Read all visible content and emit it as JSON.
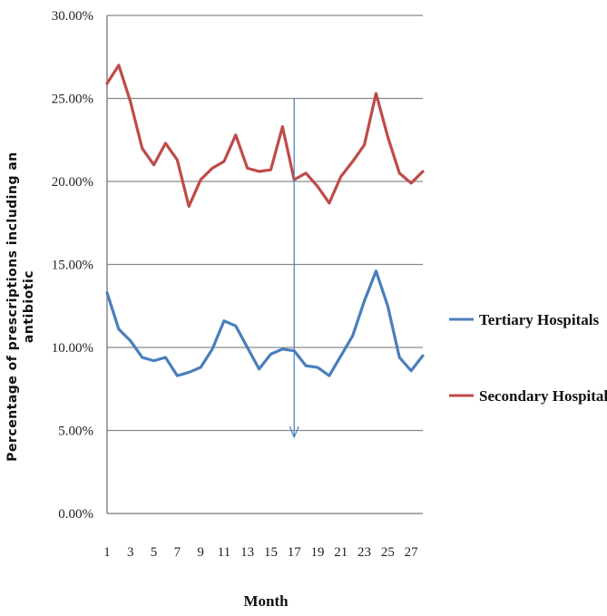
{
  "chart_data": {
    "type": "line",
    "title": "",
    "xlabel": "Month",
    "ylabel_line1": "Percentage of prescriptions including an",
    "ylabel_line2": "antibiotic",
    "ylim": [
      0,
      30
    ],
    "y_ticks": [
      0,
      5,
      10,
      15,
      20,
      25,
      30
    ],
    "y_tick_labels": [
      "0.00%",
      "5.00%",
      "10.00%",
      "15.00%",
      "20.00%",
      "25.00%",
      "30.00%"
    ],
    "x": [
      1,
      2,
      3,
      4,
      5,
      6,
      7,
      8,
      9,
      10,
      11,
      12,
      13,
      14,
      15,
      16,
      17,
      18,
      19,
      20,
      21,
      22,
      23,
      24,
      25,
      26,
      27,
      28
    ],
    "x_tick_labels": [
      "1",
      "3",
      "5",
      "7",
      "9",
      "11",
      "13",
      "15",
      "17",
      "19",
      "21",
      "23",
      "25",
      "27"
    ],
    "grid": "horizontal",
    "legend_position": "right",
    "annotation": "vertical arrow at month 17",
    "series": [
      {
        "name": "Tertiary Hospitals",
        "color": "#4a7ebb",
        "values": [
          13.3,
          11.1,
          10.4,
          9.4,
          9.2,
          9.4,
          8.3,
          8.5,
          8.8,
          9.9,
          11.6,
          11.3,
          10.0,
          8.7,
          9.6,
          9.9,
          9.8,
          8.9,
          8.8,
          8.3,
          9.5,
          10.7,
          12.8,
          14.6,
          12.5,
          9.4,
          8.6,
          9.5
        ]
      },
      {
        "name": "Secondary Hospitals",
        "color": "#be4b48",
        "values": [
          25.9,
          27.0,
          24.8,
          22.0,
          21.0,
          22.3,
          21.3,
          18.5,
          20.1,
          20.8,
          21.2,
          22.8,
          20.8,
          20.6,
          20.7,
          23.3,
          20.1,
          20.5,
          19.7,
          18.7,
          20.3,
          21.2,
          22.2,
          25.3,
          22.7,
          20.5,
          19.9,
          20.6
        ]
      }
    ]
  }
}
